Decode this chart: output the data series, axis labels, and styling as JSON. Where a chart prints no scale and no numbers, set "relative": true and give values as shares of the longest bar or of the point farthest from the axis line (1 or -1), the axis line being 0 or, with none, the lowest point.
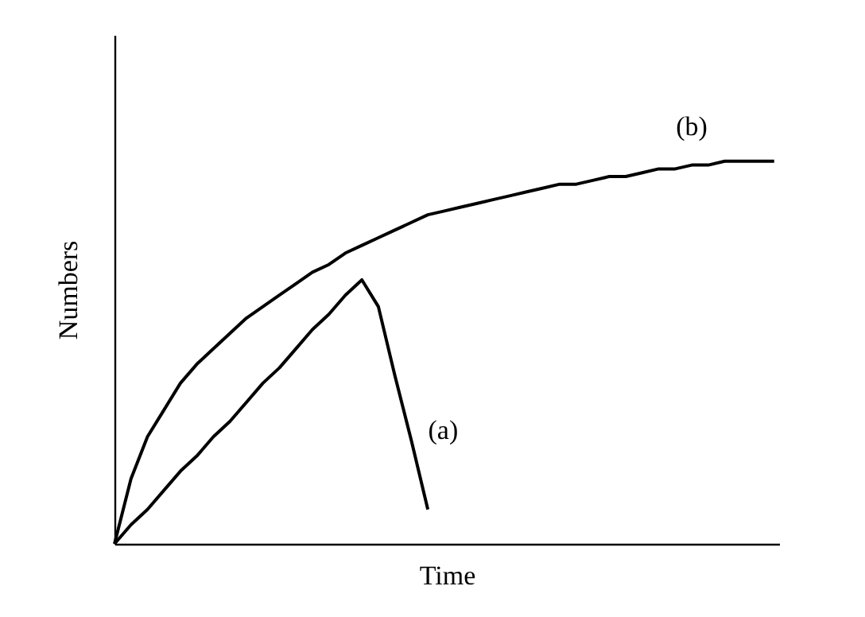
{
  "chart_data": {
    "type": "line",
    "relative": true,
    "xlabel": "Time",
    "ylabel": "Numbers",
    "grid": false,
    "marker": "none",
    "line_style": "solid",
    "categories": [
      null,
      null,
      null,
      null,
      null,
      null,
      null,
      null,
      null,
      null,
      null,
      null,
      null,
      null,
      null,
      null,
      null,
      null,
      null,
      null,
      null,
      null,
      null,
      null,
      null,
      null,
      null,
      null,
      null,
      null,
      null,
      null,
      null,
      null,
      null,
      null,
      null,
      null,
      null,
      null,
      null
    ],
    "series": [
      {
        "name": "(a)",
        "color": "#000000",
        "values": [
          0,
          0.05,
          0.09,
          0.14,
          0.19,
          0.23,
          0.28,
          0.32,
          0.37,
          0.42,
          0.46,
          0.51,
          0.56,
          0.6,
          0.65,
          0.69,
          0.62,
          0.44,
          0.27,
          0.09,
          null,
          null,
          null,
          null,
          null,
          null,
          null,
          null,
          null,
          null,
          null,
          null,
          null,
          null,
          null,
          null,
          null,
          null,
          null,
          null,
          null
        ]
      },
      {
        "name": "(b)",
        "color": "#000000",
        "values": [
          0,
          0.17,
          0.28,
          0.35,
          0.42,
          0.47,
          0.51,
          0.55,
          0.59,
          0.62,
          0.65,
          0.68,
          0.71,
          0.73,
          0.76,
          0.78,
          0.8,
          0.82,
          0.84,
          0.86,
          0.87,
          0.88,
          0.89,
          0.9,
          0.91,
          0.92,
          0.93,
          0.94,
          0.94,
          0.95,
          0.96,
          0.96,
          0.97,
          0.98,
          0.98,
          0.99,
          0.99,
          1,
          1,
          1,
          1
        ]
      }
    ]
  }
}
